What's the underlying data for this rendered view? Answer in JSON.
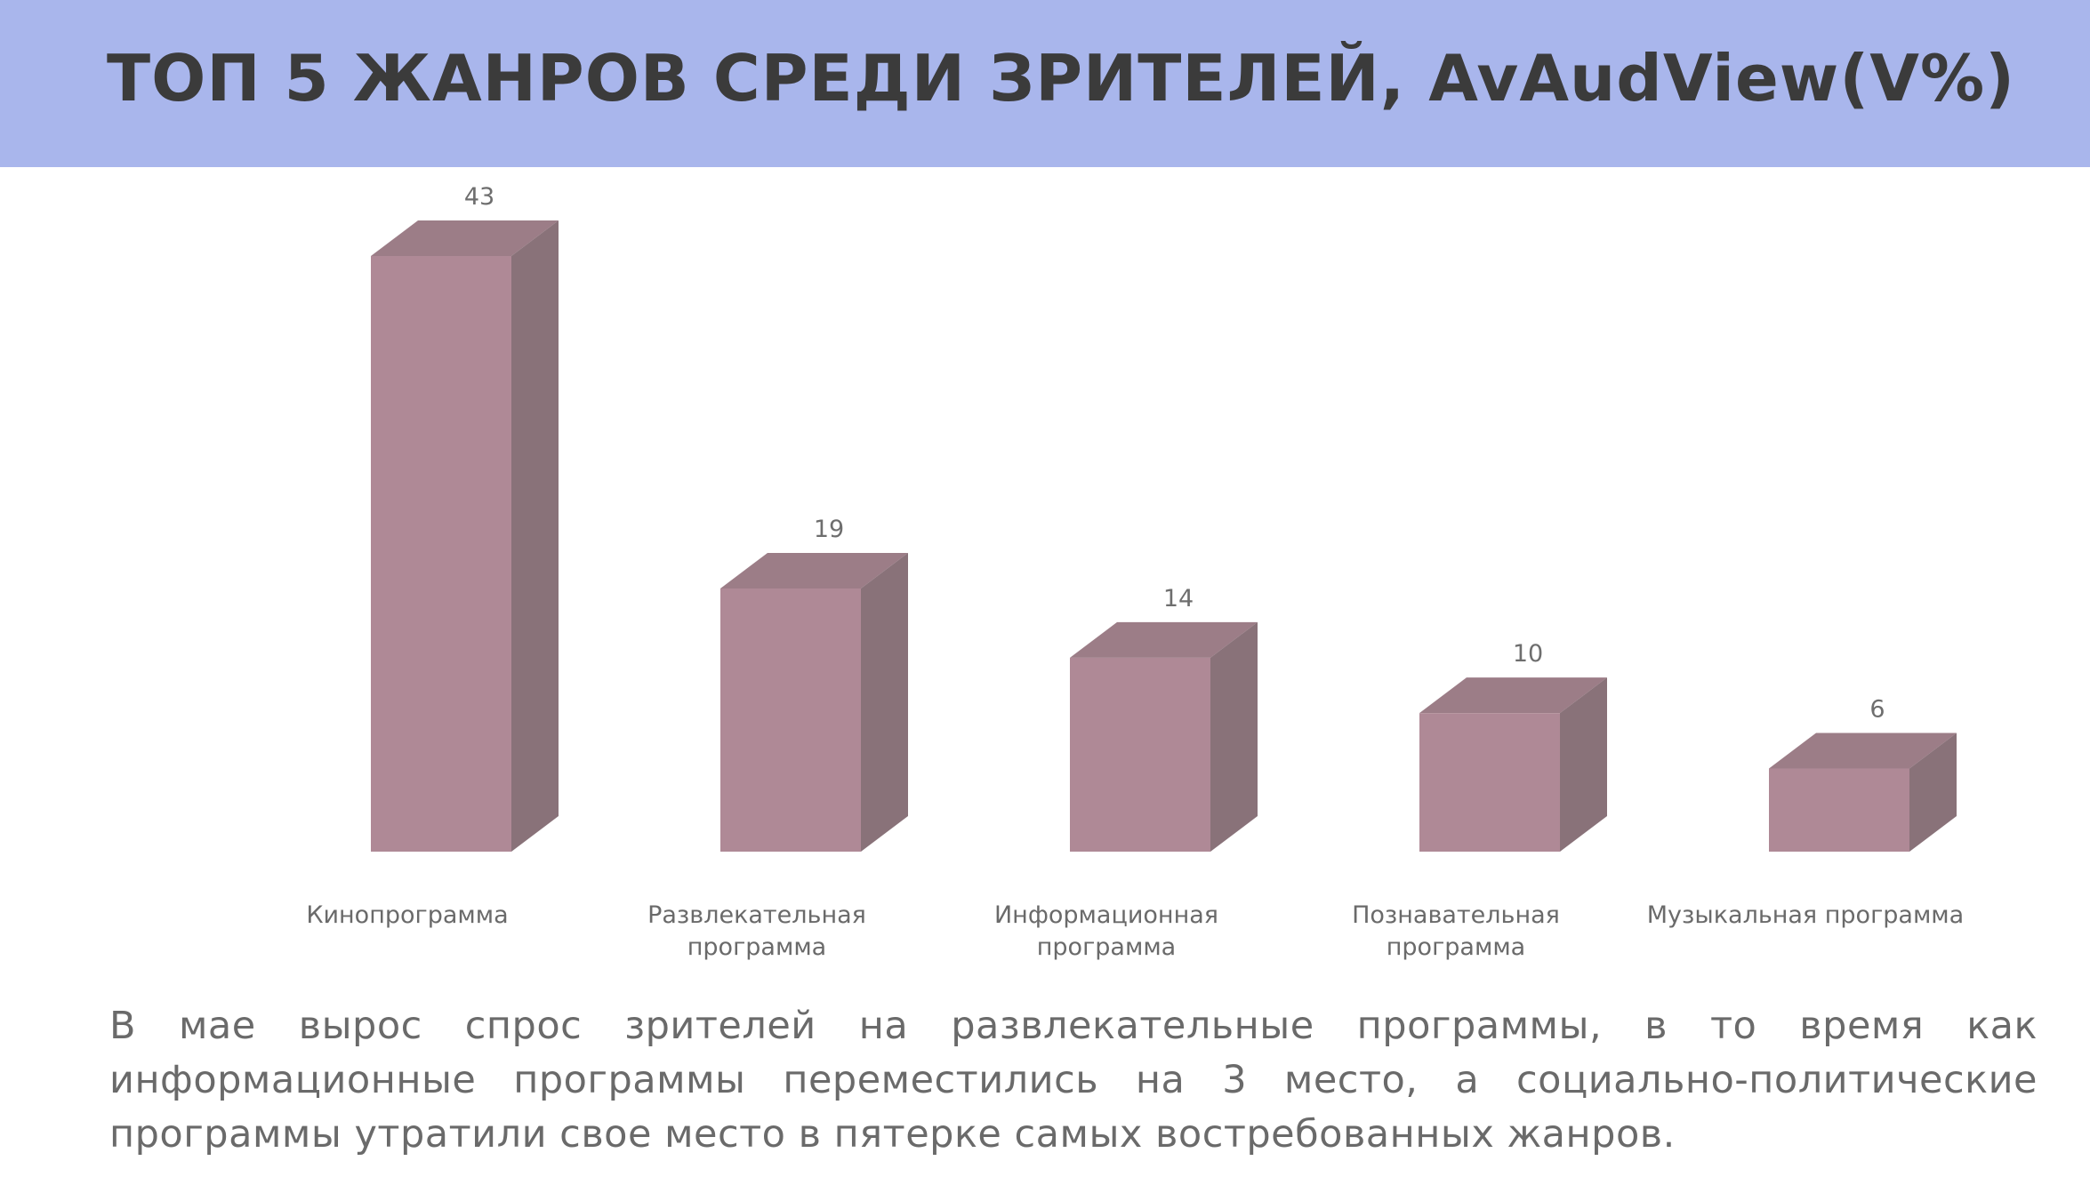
{
  "title": "ТОП 5  ЖАНРОВ СРЕДИ ЗРИТЕЛЕЙ, AvAudView(V%)",
  "colors": {
    "header_bg": "#a9b6ec",
    "bar_front": "#af8996",
    "bar_top": "#9c7d87",
    "bar_side": "#897279"
  },
  "chart_data": {
    "type": "bar",
    "categories": [
      [
        "Кинопрограмма"
      ],
      [
        "Развлекательная",
        "программа"
      ],
      [
        "Информационная",
        "программа"
      ],
      [
        "Познавательная",
        "программа"
      ],
      [
        "Музыкальная программа"
      ]
    ],
    "values": [
      43,
      19,
      14,
      10,
      6
    ],
    "data_labels": [
      "43",
      "19",
      "14",
      "10",
      "6"
    ],
    "ylim": [
      0,
      43
    ],
    "grid": false,
    "legend": "none",
    "style": "3d-column"
  },
  "caption": "В мае вырос спрос зрителей на развлекательные программы, в то время как информационные программы переместились на 3 место, а социально-политические программы утратили свое место в пятерке самых востребованных жанров."
}
